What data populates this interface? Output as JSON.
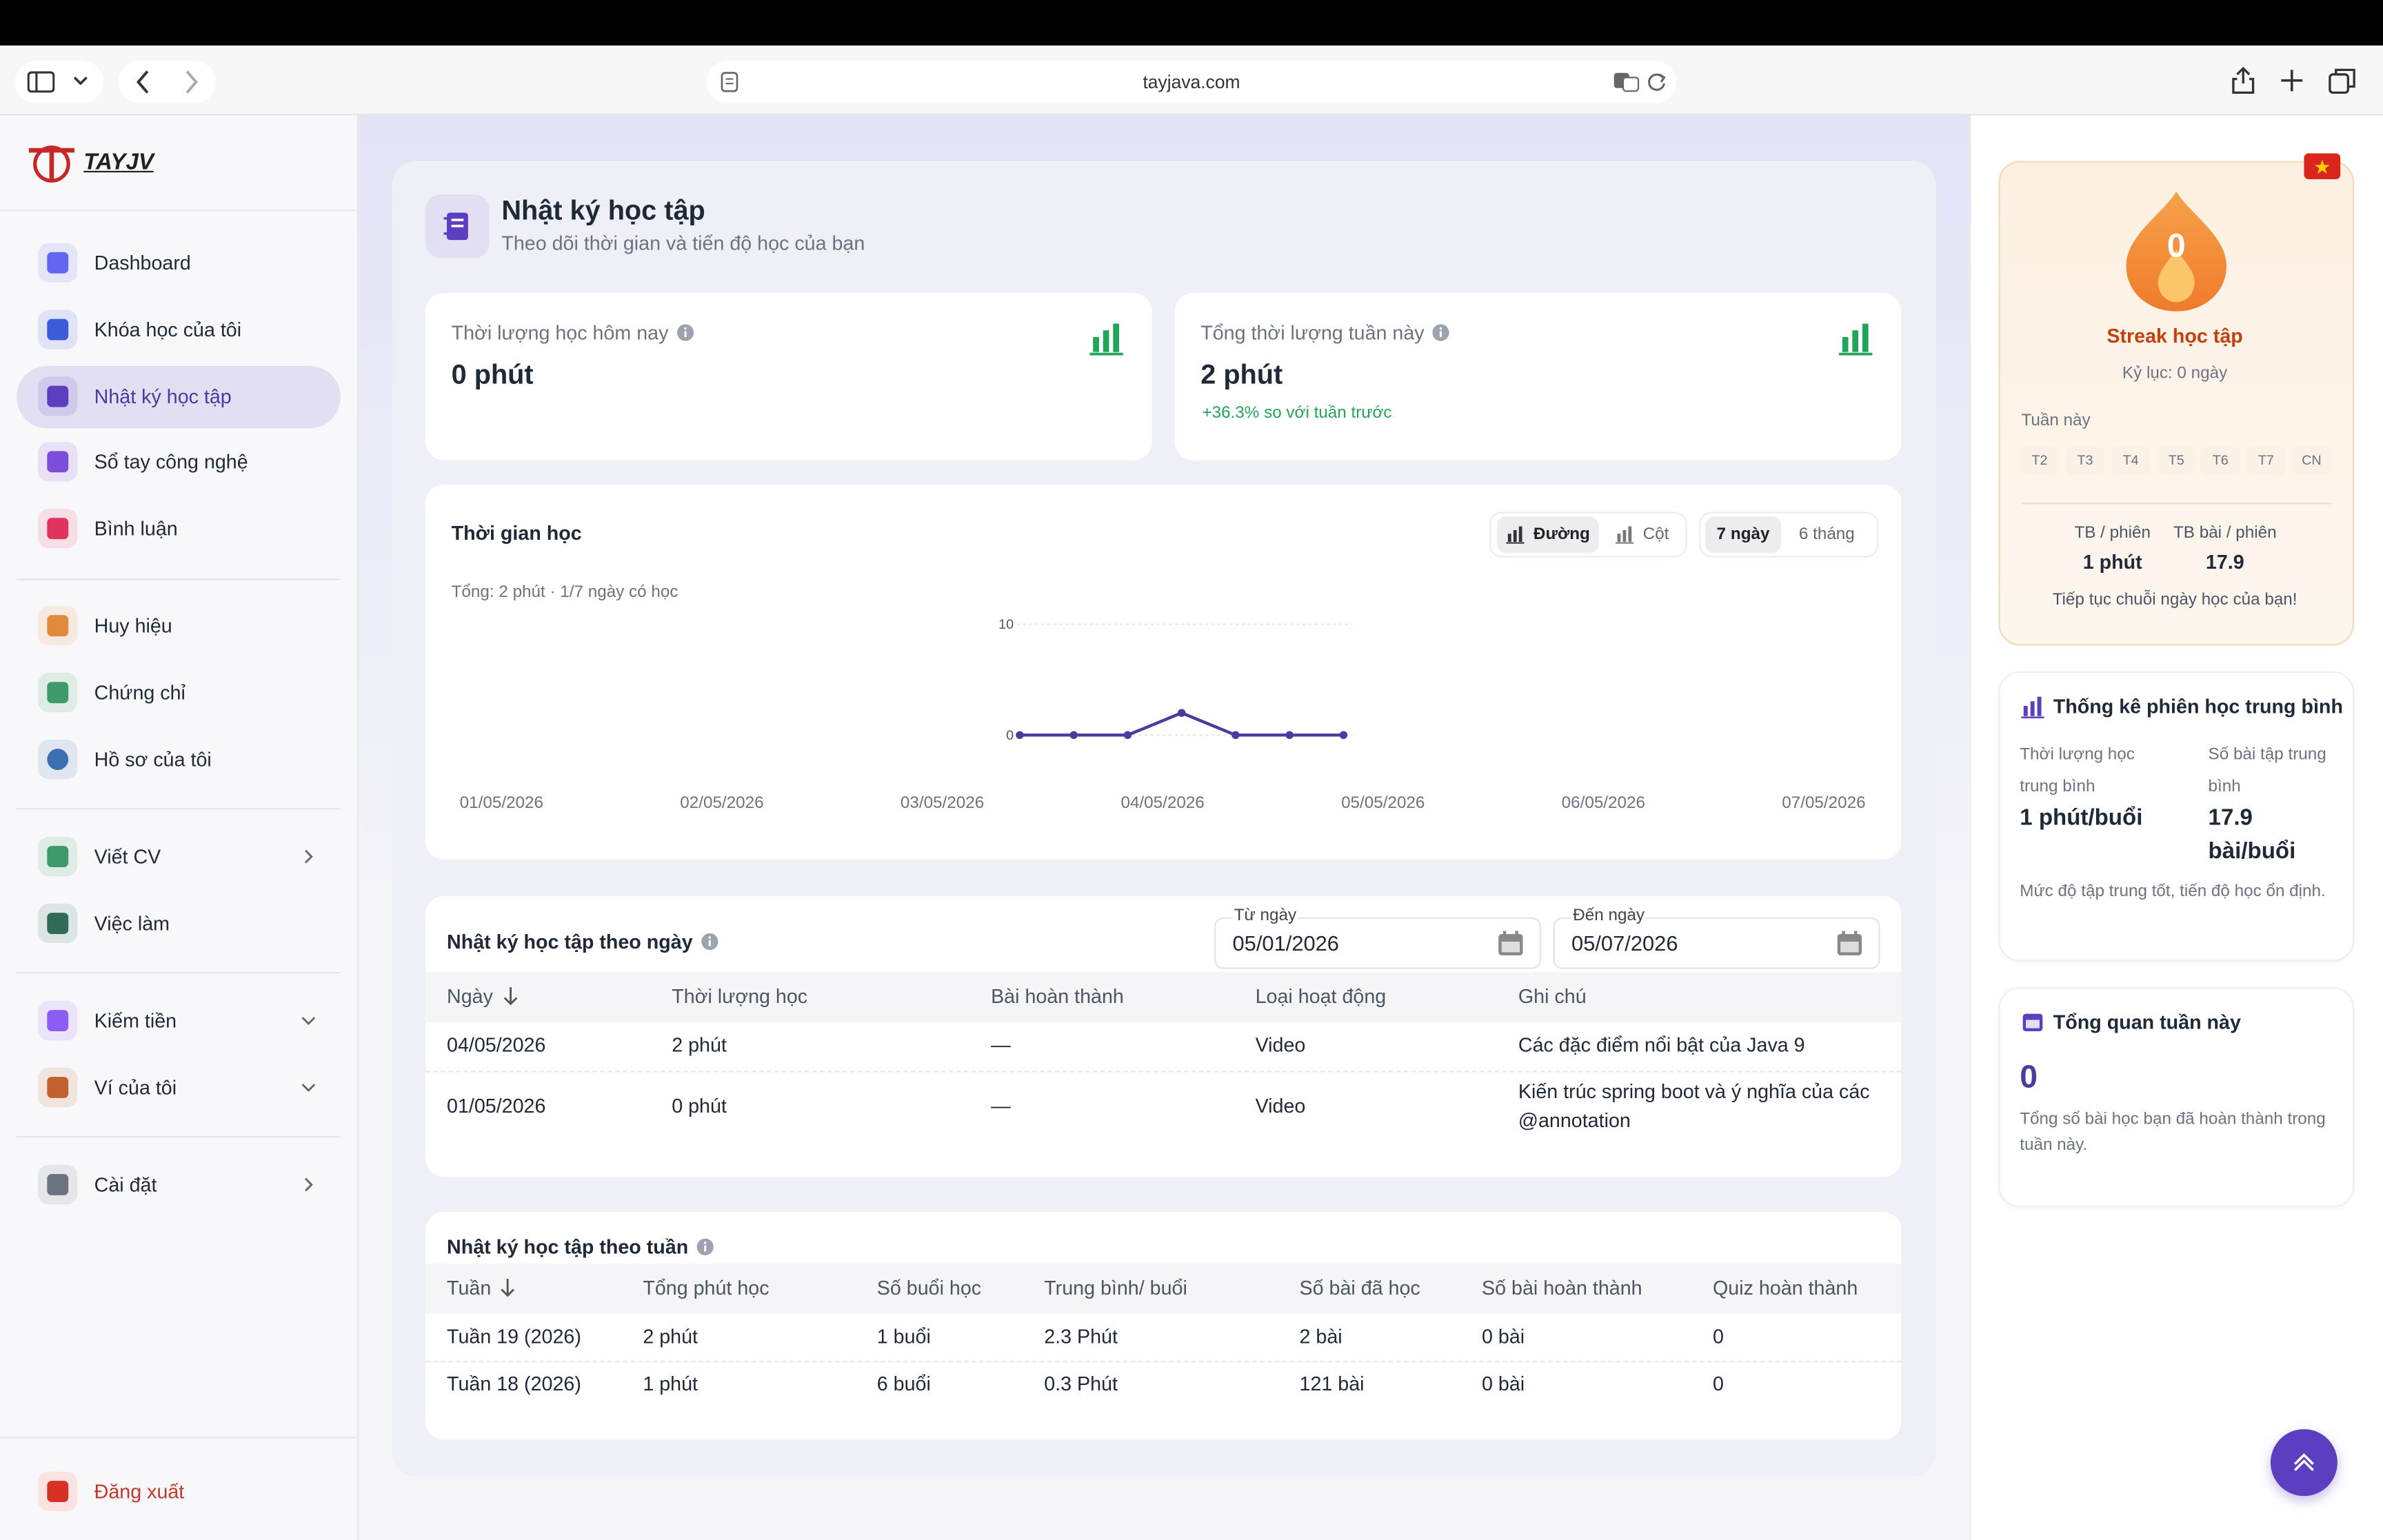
{
  "browser": {
    "url": "tayjava.com"
  },
  "sidebar": {
    "logo": "TAYJV",
    "groups": [
      [
        "Dashboard",
        "Khóa học của tôi",
        "Nhật ký học tập",
        "Sổ tay công nghệ",
        "Bình luận"
      ],
      [
        "Huy hiệu",
        "Chứng chỉ",
        "Hồ sơ của tôi"
      ],
      [
        "Viết CV",
        "Việc làm"
      ],
      [
        "Kiếm tiền",
        "Ví của tôi"
      ],
      [
        "Cài đặt"
      ]
    ],
    "logout": "Đăng xuất"
  },
  "header": {
    "title": "Nhật ký học tập",
    "subtitle": "Theo dõi thời gian và tiến độ học của bạn"
  },
  "stats": [
    {
      "label": "Thời lượng học hôm nay",
      "value": "0 phút"
    },
    {
      "label": "Tổng thời lượng tuần này",
      "value": "2 phút",
      "delta": "+36.3% so với tuần trước"
    }
  ],
  "chart_data": {
    "type": "line",
    "title": "Thời gian học",
    "modes": [
      "Đường",
      "Cột"
    ],
    "ranges": [
      "7 ngày",
      "6 tháng"
    ],
    "summary": "Tổng: 2 phút · 1/7 ngày có học",
    "categories": [
      "01/05/2026",
      "02/05/2026",
      "03/05/2026",
      "04/05/2026",
      "05/05/2026",
      "06/05/2026",
      "07/05/2026"
    ],
    "values": [
      0,
      0,
      0,
      2,
      0,
      0,
      0
    ],
    "color": "#4c3a9e",
    "ylim": [
      0,
      10
    ],
    "yticks": [
      0,
      10
    ],
    "grid": true
  },
  "daily_log": {
    "title": "Nhật ký học tập theo ngày",
    "from_label": "Từ ngày",
    "from": "05/01/2026",
    "to_label": "Đến ngày",
    "to": "05/07/2026",
    "columns": [
      "Ngày",
      "Thời lượng học",
      "Bài hoàn thành",
      "Loại hoạt động",
      "Ghi chú"
    ],
    "rows": [
      [
        "04/05/2026",
        "2 phút",
        "—",
        "Video",
        "Các đặc điểm nổi bật của Java 9"
      ],
      [
        "01/05/2026",
        "0 phút",
        "—",
        "Video",
        "Kiến trúc spring boot và ý nghĩa của các @annotation"
      ]
    ]
  },
  "weekly_log": {
    "title": "Nhật ký học tập theo tuần",
    "columns": [
      "Tuần",
      "Tổng phút học",
      "Số buổi học",
      "Trung bình/ buổi",
      "Số bài đã học",
      "Số bài hoàn thành",
      "Quiz hoàn thành"
    ],
    "rows": [
      [
        "Tuần 19 (2026)",
        "2 phút",
        "1 buổi",
        "2.3 Phút",
        "2 bài",
        "0 bài",
        "0"
      ],
      [
        "Tuần 18 (2026)",
        "1 phút",
        "6 buổi",
        "0.3 Phút",
        "121 bài",
        "0 bài",
        "0"
      ]
    ]
  },
  "streak": {
    "count": 0,
    "title": "Streak học tập",
    "record": "Kỷ lục: 0 ngày",
    "week_label": "Tuần này",
    "days": [
      "T2",
      "T3",
      "T4",
      "T5",
      "T6",
      "T7",
      "CN"
    ],
    "stats": [
      {
        "label": "TB / phiên",
        "value": "1 phút"
      },
      {
        "label": "TB bài / phiên",
        "value": "17.9"
      }
    ],
    "note": "Tiếp tục chuỗi ngày học của bạn!"
  },
  "session_stats": {
    "title": "Thống kê phiên học trung bình",
    "items": [
      {
        "label": "Thời lượng học trung bình",
        "value": "1 phút/buổi"
      },
      {
        "label": "Số bài tập trung bình",
        "value": "17.9 bài/buổi"
      }
    ],
    "note": "Mức độ tập trung tốt, tiến độ học ổn định."
  },
  "week_overview": {
    "title": "Tổng quan tuần này",
    "count": 0,
    "note": "Tổng số bài học bạn đã hoàn thành trong tuần này."
  }
}
